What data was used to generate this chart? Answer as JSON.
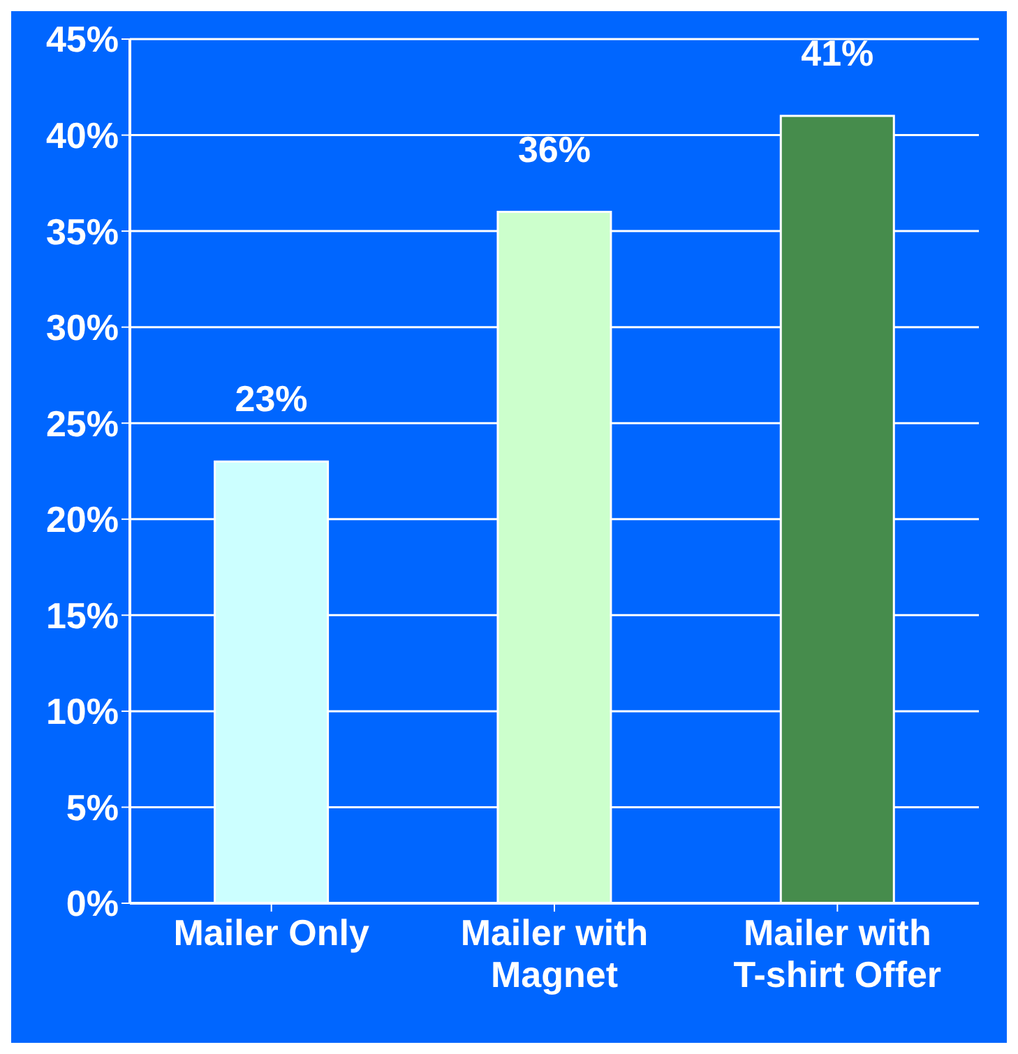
{
  "chart_data": {
    "type": "bar",
    "categories": [
      "Mailer Only",
      "Mailer with Magnet",
      "Mailer with T-shirt Offer"
    ],
    "values": [
      23,
      36,
      41
    ],
    "colors": [
      "#ccffff",
      "#ccffcc",
      "#468c4c"
    ],
    "value_labels": [
      "23%",
      "36%",
      "41%"
    ],
    "ylim": [
      0,
      45
    ],
    "yticks": [
      {
        "value": 0,
        "label": "0%"
      },
      {
        "value": 5,
        "label": "5%"
      },
      {
        "value": 10,
        "label": "10%"
      },
      {
        "value": 15,
        "label": "15%"
      },
      {
        "value": 20,
        "label": "20%"
      },
      {
        "value": 25,
        "label": "25%"
      },
      {
        "value": 30,
        "label": "30%"
      },
      {
        "value": 35,
        "label": "35%"
      },
      {
        "value": 40,
        "label": "40%"
      },
      {
        "value": 45,
        "label": "45%"
      }
    ],
    "grid": "y"
  }
}
